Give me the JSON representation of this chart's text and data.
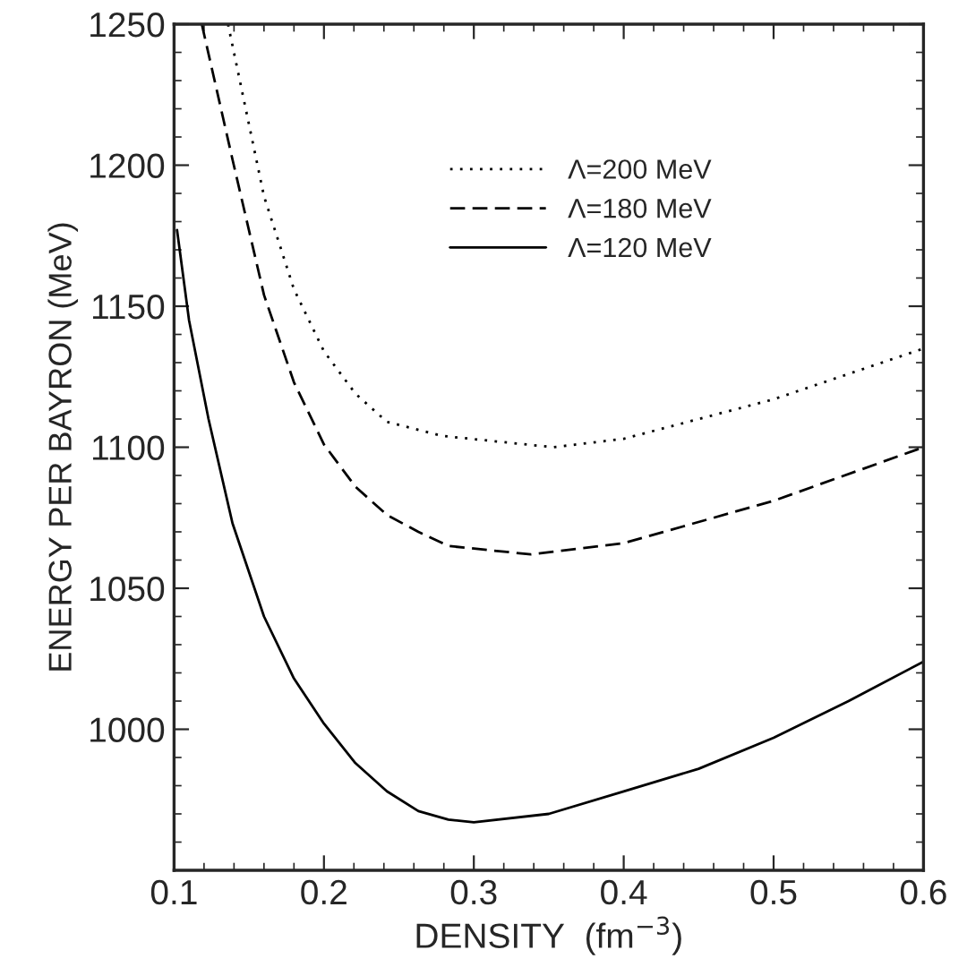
{
  "chart_data": {
    "type": "line",
    "xlabel": "DENSITY  (fm$^{−3}$)",
    "ylabel": "ENERGY PER BAYRON (MeV)",
    "xlim": [
      0.1,
      0.6
    ],
    "ylim": [
      950,
      1250
    ],
    "xticks": [
      0.1,
      0.2,
      0.3,
      0.4,
      0.5,
      0.6
    ],
    "yticks": [
      1000,
      1050,
      1100,
      1150,
      1200,
      1250
    ],
    "grid": false,
    "legend": "top right",
    "series": [
      {
        "name": "Λ=200 MeV",
        "color": "#000000",
        "line_style": "dotted",
        "x": [
          0.136,
          0.16,
          0.18,
          0.2,
          0.221,
          0.242,
          0.279,
          0.353,
          0.4,
          0.5,
          0.6
        ],
        "values": [
          1250,
          1189,
          1156,
          1134,
          1119,
          1109,
          1104,
          1100,
          1103,
          1117,
          1135
        ]
      },
      {
        "name": "Λ=180 MeV",
        "color": "#000000",
        "line_style": "dashed",
        "x": [
          0.1185,
          0.139,
          0.16,
          0.18,
          0.2,
          0.221,
          0.242,
          0.263,
          0.283,
          0.338,
          0.4,
          0.5,
          0.6
        ],
        "values": [
          1250,
          1202,
          1154,
          1123,
          1101,
          1086,
          1076,
          1070,
          1065,
          1062,
          1066,
          1081,
          1100
        ]
      },
      {
        "name": "Λ=120 MeV",
        "color": "#000000",
        "line_style": "solid",
        "x": [
          0.102,
          0.11,
          0.123,
          0.139,
          0.16,
          0.18,
          0.2,
          0.221,
          0.242,
          0.263,
          0.283,
          0.3,
          0.35,
          0.4,
          0.45,
          0.5,
          0.55,
          0.6
        ],
        "values": [
          1177,
          1145,
          1110,
          1073,
          1040,
          1018,
          1002,
          988,
          978,
          971,
          968,
          967,
          970,
          978,
          986,
          997,
          1010,
          1024
        ]
      }
    ]
  }
}
